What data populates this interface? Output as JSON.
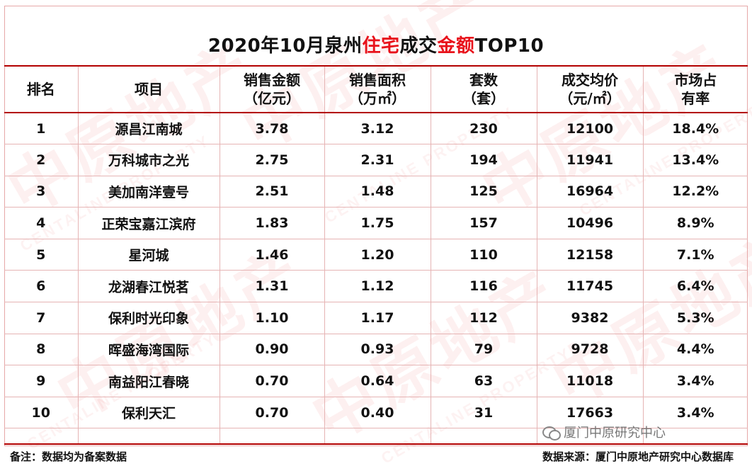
{
  "title": {
    "part1": "2020年10月泉州",
    "part2_red": "住宅",
    "part3": "成交",
    "part4_red": "金额",
    "part5": "TOP10"
  },
  "columns": [
    {
      "line1": "排名",
      "line2": ""
    },
    {
      "line1": "项目",
      "line2": ""
    },
    {
      "line1": "销售金额",
      "line2": "（亿元）"
    },
    {
      "line1": "销售面积",
      "line2": "（万㎡）"
    },
    {
      "line1": "套数",
      "line2": "（套）"
    },
    {
      "line1": "成交均价",
      "line2": "（元/㎡）"
    },
    {
      "line1": "市场占",
      "line2": "有率"
    }
  ],
  "rows": [
    {
      "rank": "1",
      "project": "源昌江南城",
      "amount": "3.78",
      "area": "3.12",
      "units": "230",
      "avg_price": "12100",
      "share": "18.4%"
    },
    {
      "rank": "2",
      "project": "万科城市之光",
      "amount": "2.75",
      "area": "2.31",
      "units": "194",
      "avg_price": "11941",
      "share": "13.4%"
    },
    {
      "rank": "3",
      "project": "美加南洋壹号",
      "amount": "2.51",
      "area": "1.48",
      "units": "125",
      "avg_price": "16964",
      "share": "12.2%"
    },
    {
      "rank": "4",
      "project": "正荣宝嘉江滨府",
      "amount": "1.83",
      "area": "1.75",
      "units": "157",
      "avg_price": "10496",
      "share": "8.9%"
    },
    {
      "rank": "5",
      "project": "星河城",
      "amount": "1.46",
      "area": "1.20",
      "units": "110",
      "avg_price": "12158",
      "share": "7.1%"
    },
    {
      "rank": "6",
      "project": "龙湖春江悦茗",
      "amount": "1.31",
      "area": "1.12",
      "units": "116",
      "avg_price": "11745",
      "share": "6.4%"
    },
    {
      "rank": "7",
      "project": "保利时光印象",
      "amount": "1.10",
      "area": "1.17",
      "units": "112",
      "avg_price": "9382",
      "share": "5.3%"
    },
    {
      "rank": "8",
      "project": "晖盛海湾国际",
      "amount": "0.90",
      "area": "0.93",
      "units": "79",
      "avg_price": "9728",
      "share": "4.4%"
    },
    {
      "rank": "9",
      "project": "南益阳江春晓",
      "amount": "0.70",
      "area": "0.64",
      "units": "63",
      "avg_price": "11018",
      "share": "3.4%"
    },
    {
      "rank": "10",
      "project": "保利天汇",
      "amount": "0.70",
      "area": "0.40",
      "units": "31",
      "avg_price": "17663",
      "share": "3.4%"
    }
  ],
  "footer": {
    "note": "备注：数据均为备案数据",
    "source": "数据来源：厦门中原地产研究中心数据库"
  },
  "wechat_tag": "厦门中原研究中心",
  "watermark": {
    "cn": "中原地产",
    "en": "CENTALINE PROPERTY"
  },
  "colors": {
    "title_red": "#e8121b",
    "rule_red": "#b30000",
    "grid_line": "#e6b4b4"
  },
  "icons": [
    "wechat-icon"
  ]
}
